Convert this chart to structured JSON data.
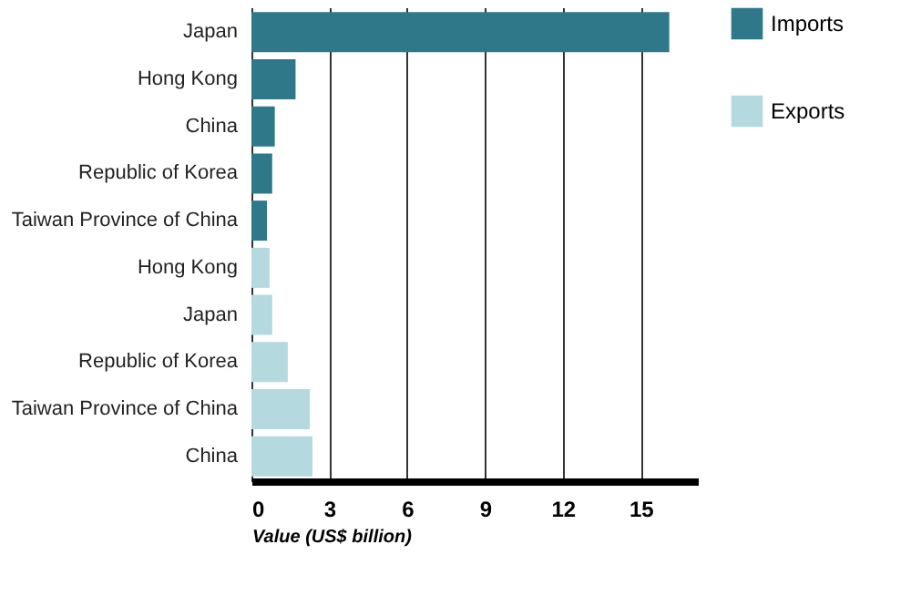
{
  "chart_data": {
    "type": "bar",
    "orientation": "horizontal",
    "xlabel": "Value (US$ billion)",
    "categories": [
      "Japan",
      "Hong Kong",
      "China",
      "Republic of Korea",
      "Taiwan Province of China",
      "Hong Kong",
      "Japan",
      "Republic of Korea",
      "Taiwan Province of China",
      "China"
    ],
    "series": [
      {
        "name": "Imports",
        "color": "#2e7889",
        "values": [
          16.1,
          1.7,
          0.9,
          0.8,
          0.6,
          null,
          null,
          null,
          null,
          null
        ]
      },
      {
        "name": "Exports",
        "color": "#b4dadf",
        "values": [
          null,
          null,
          null,
          null,
          null,
          0.7,
          0.8,
          1.4,
          2.25,
          2.35
        ]
      }
    ],
    "xlim": [
      0,
      17.2
    ],
    "xticks": [
      0,
      3,
      6,
      9,
      12,
      15
    ],
    "grid": "x",
    "legend": "top right"
  }
}
